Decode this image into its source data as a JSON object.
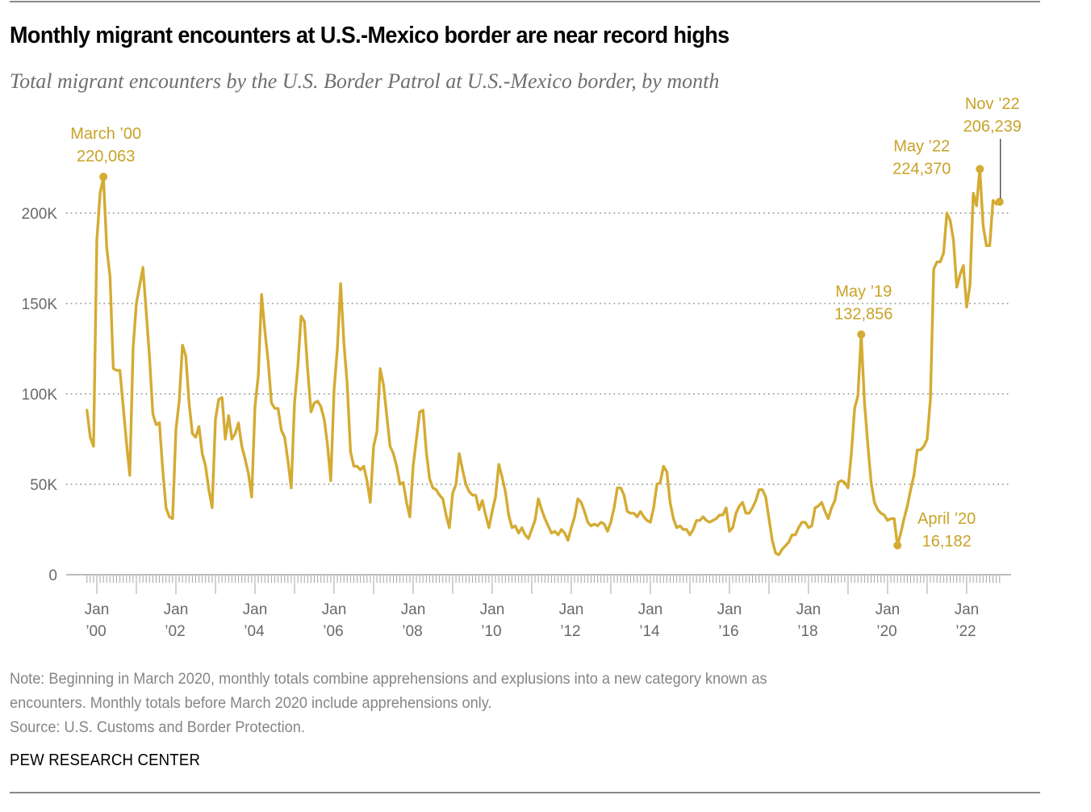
{
  "header": {
    "title": "Monthly migrant encounters at U.S.-Mexico border are near record highs",
    "subtitle": "Total migrant encounters by the U.S. Border Patrol at U.S.-Mexico border, by month"
  },
  "footer": {
    "note_line1": "Note: Beginning in March 2020, monthly totals combine apprehensions and explusions into a new category known as",
    "note_line2": "encounters. Monthly totals before March 2020 include apprehensions only.",
    "source": "Source: U.S. Customs and Border Protection.",
    "brand": "PEW RESEARCH CENTER"
  },
  "colors": {
    "line": "#d4ab33",
    "annotation": "#c9a227",
    "grid": "#8a8a8a",
    "axis": "#a6a6a6"
  },
  "chart_data": {
    "type": "line",
    "title": "Monthly migrant encounters at U.S.-Mexico border are near record highs",
    "subtitle": "Total migrant encounters by the U.S. Border Patrol at U.S.-Mexico border, by month",
    "xlabel": "",
    "ylabel": "",
    "x_start": "1999-10",
    "x_end": "2022-11",
    "x_frequency": "monthly",
    "ylim": [
      0,
      230000
    ],
    "grid": true,
    "y_ticks": [
      {
        "value": 0,
        "label": "0"
      },
      {
        "value": 50000,
        "label": "50K"
      },
      {
        "value": 100000,
        "label": "100K"
      },
      {
        "value": 150000,
        "label": "150K"
      },
      {
        "value": 200000,
        "label": "200K"
      }
    ],
    "x_ticks": [
      {
        "date": "2000-01",
        "line1": "Jan",
        "line2": "’00"
      },
      {
        "date": "2002-01",
        "line1": "Jan",
        "line2": "’02"
      },
      {
        "date": "2004-01",
        "line1": "Jan",
        "line2": "’04"
      },
      {
        "date": "2006-01",
        "line1": "Jan",
        "line2": "’06"
      },
      {
        "date": "2008-01",
        "line1": "Jan",
        "line2": "’08"
      },
      {
        "date": "2010-01",
        "line1": "Jan",
        "line2": "’10"
      },
      {
        "date": "2012-01",
        "line1": "Jan",
        "line2": "’12"
      },
      {
        "date": "2014-01",
        "line1": "Jan",
        "line2": "’14"
      },
      {
        "date": "2016-01",
        "line1": "Jan",
        "line2": "’16"
      },
      {
        "date": "2018-01",
        "line1": "Jan",
        "line2": "’18"
      },
      {
        "date": "2020-01",
        "line1": "Jan",
        "line2": "’20"
      },
      {
        "date": "2022-01",
        "line1": "Jan",
        "line2": "’22"
      }
    ],
    "series": [
      {
        "name": "Migrant encounters",
        "values": [
          91000,
          76000,
          71000,
          185000,
          211000,
          220063,
          181000,
          165000,
          114000,
          113000,
          113000,
          93000,
          73000,
          55000,
          125000,
          150000,
          160000,
          170000,
          145000,
          120000,
          89000,
          83000,
          84000,
          58000,
          37000,
          32000,
          31000,
          80000,
          96000,
          127000,
          121000,
          95000,
          78000,
          76000,
          82000,
          67000,
          60000,
          47000,
          37000,
          86000,
          97000,
          98000,
          75000,
          88000,
          75000,
          78000,
          84000,
          71000,
          64000,
          56000,
          43000,
          93000,
          110000,
          155000,
          135000,
          118000,
          95000,
          92000,
          92000,
          80000,
          76000,
          63000,
          48000,
          95000,
          115000,
          143000,
          140000,
          113000,
          90000,
          95000,
          96000,
          93000,
          86000,
          72000,
          52000,
          102000,
          125000,
          161000,
          128000,
          105000,
          68000,
          60000,
          60000,
          58000,
          60000,
          52000,
          40000,
          71000,
          79000,
          114000,
          105000,
          88000,
          71000,
          67000,
          60000,
          50000,
          51000,
          40000,
          32000,
          60000,
          75000,
          90000,
          91000,
          68000,
          53000,
          48000,
          47000,
          44000,
          42000,
          33000,
          26000,
          45000,
          50000,
          67000,
          58000,
          50000,
          46000,
          44000,
          44000,
          36000,
          41000,
          33000,
          26000,
          35000,
          43000,
          61000,
          54000,
          46000,
          33000,
          26000,
          27000,
          23000,
          26000,
          22000,
          20000,
          25000,
          30000,
          42000,
          36000,
          31000,
          27000,
          23000,
          24000,
          22000,
          25000,
          23000,
          19000,
          26000,
          32000,
          42000,
          40000,
          35000,
          29000,
          27000,
          28000,
          27000,
          29000,
          28000,
          24000,
          29000,
          37000,
          48000,
          48000,
          44000,
          35000,
          34000,
          34000,
          32000,
          35000,
          32000,
          30000,
          29000,
          37000,
          50000,
          51000,
          60000,
          57000,
          40000,
          31000,
          26000,
          27000,
          25000,
          25000,
          22000,
          25000,
          30000,
          30000,
          32000,
          30000,
          29000,
          30000,
          31000,
          33000,
          33000,
          37000,
          24000,
          26000,
          34000,
          38000,
          40000,
          34000,
          34000,
          37000,
          41000,
          47000,
          47000,
          43000,
          31000,
          19000,
          12000,
          11000,
          14000,
          16000,
          18000,
          22000,
          22000,
          26000,
          29000,
          29000,
          26000,
          27000,
          37000,
          38000,
          40000,
          35000,
          31000,
          37000,
          41000,
          51000,
          52000,
          51000,
          48000,
          67000,
          92000,
          99000,
          132856,
          95000,
          72000,
          51000,
          40000,
          36000,
          34000,
          33000,
          30000,
          31000,
          31000,
          16182,
          23000,
          31000,
          38000,
          47000,
          55000,
          69000,
          69000,
          71000,
          75000,
          97000,
          169000,
          173000,
          173000,
          178000,
          200000,
          196000,
          185000,
          159000,
          166000,
          171000,
          148000,
          160000,
          211000,
          204000,
          224370,
          193000,
          182000,
          182000,
          207000,
          205000,
          206239
        ]
      }
    ],
    "annotations": [
      {
        "date": "2000-03",
        "value": 220063,
        "label": "March ’00",
        "value_label": "220,063",
        "position": "above"
      },
      {
        "date": "2019-05",
        "value": 132856,
        "label": "May ’19",
        "value_label": "132,856",
        "position": "above"
      },
      {
        "date": "2020-04",
        "value": 16182,
        "label": "April ’20",
        "value_label": "16,182",
        "position": "right"
      },
      {
        "date": "2022-05",
        "value": 224370,
        "label": "May ’22",
        "value_label": "224,370",
        "position": "left"
      },
      {
        "date": "2022-11",
        "value": 206239,
        "label": "Nov ’22",
        "value_label": "206,239",
        "position": "above-leader"
      }
    ]
  }
}
